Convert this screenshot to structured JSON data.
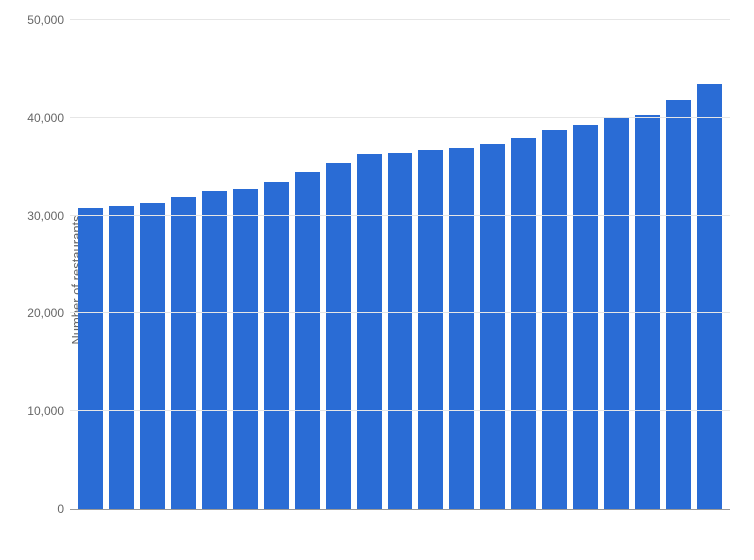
{
  "chart": {
    "type": "bar",
    "ylabel": "Number of restaurants",
    "label_fontsize": 13,
    "label_color": "#666666",
    "ylim": [
      0,
      50000
    ],
    "ytick_step": 10000,
    "yticks": [
      {
        "value": 0,
        "label": "0"
      },
      {
        "value": 10000,
        "label": "10,000"
      },
      {
        "value": 20000,
        "label": "20,000"
      },
      {
        "value": 30000,
        "label": "30,000"
      },
      {
        "value": 40000,
        "label": "40,000"
      },
      {
        "value": 50000,
        "label": "50,000"
      }
    ],
    "tick_fontsize": 12,
    "tick_color": "#666666",
    "values": [
      30800,
      31000,
      31300,
      31900,
      32500,
      32700,
      33400,
      34500,
      35400,
      36300,
      36400,
      36700,
      36900,
      37300,
      37900,
      38800,
      39300,
      40000,
      40300,
      41800,
      43500
    ],
    "bar_color": "#2a6cd5",
    "background_color": "#ffffff",
    "grid_color": "#e6e6e6",
    "axis_color": "#999999",
    "bar_gap": 6
  }
}
